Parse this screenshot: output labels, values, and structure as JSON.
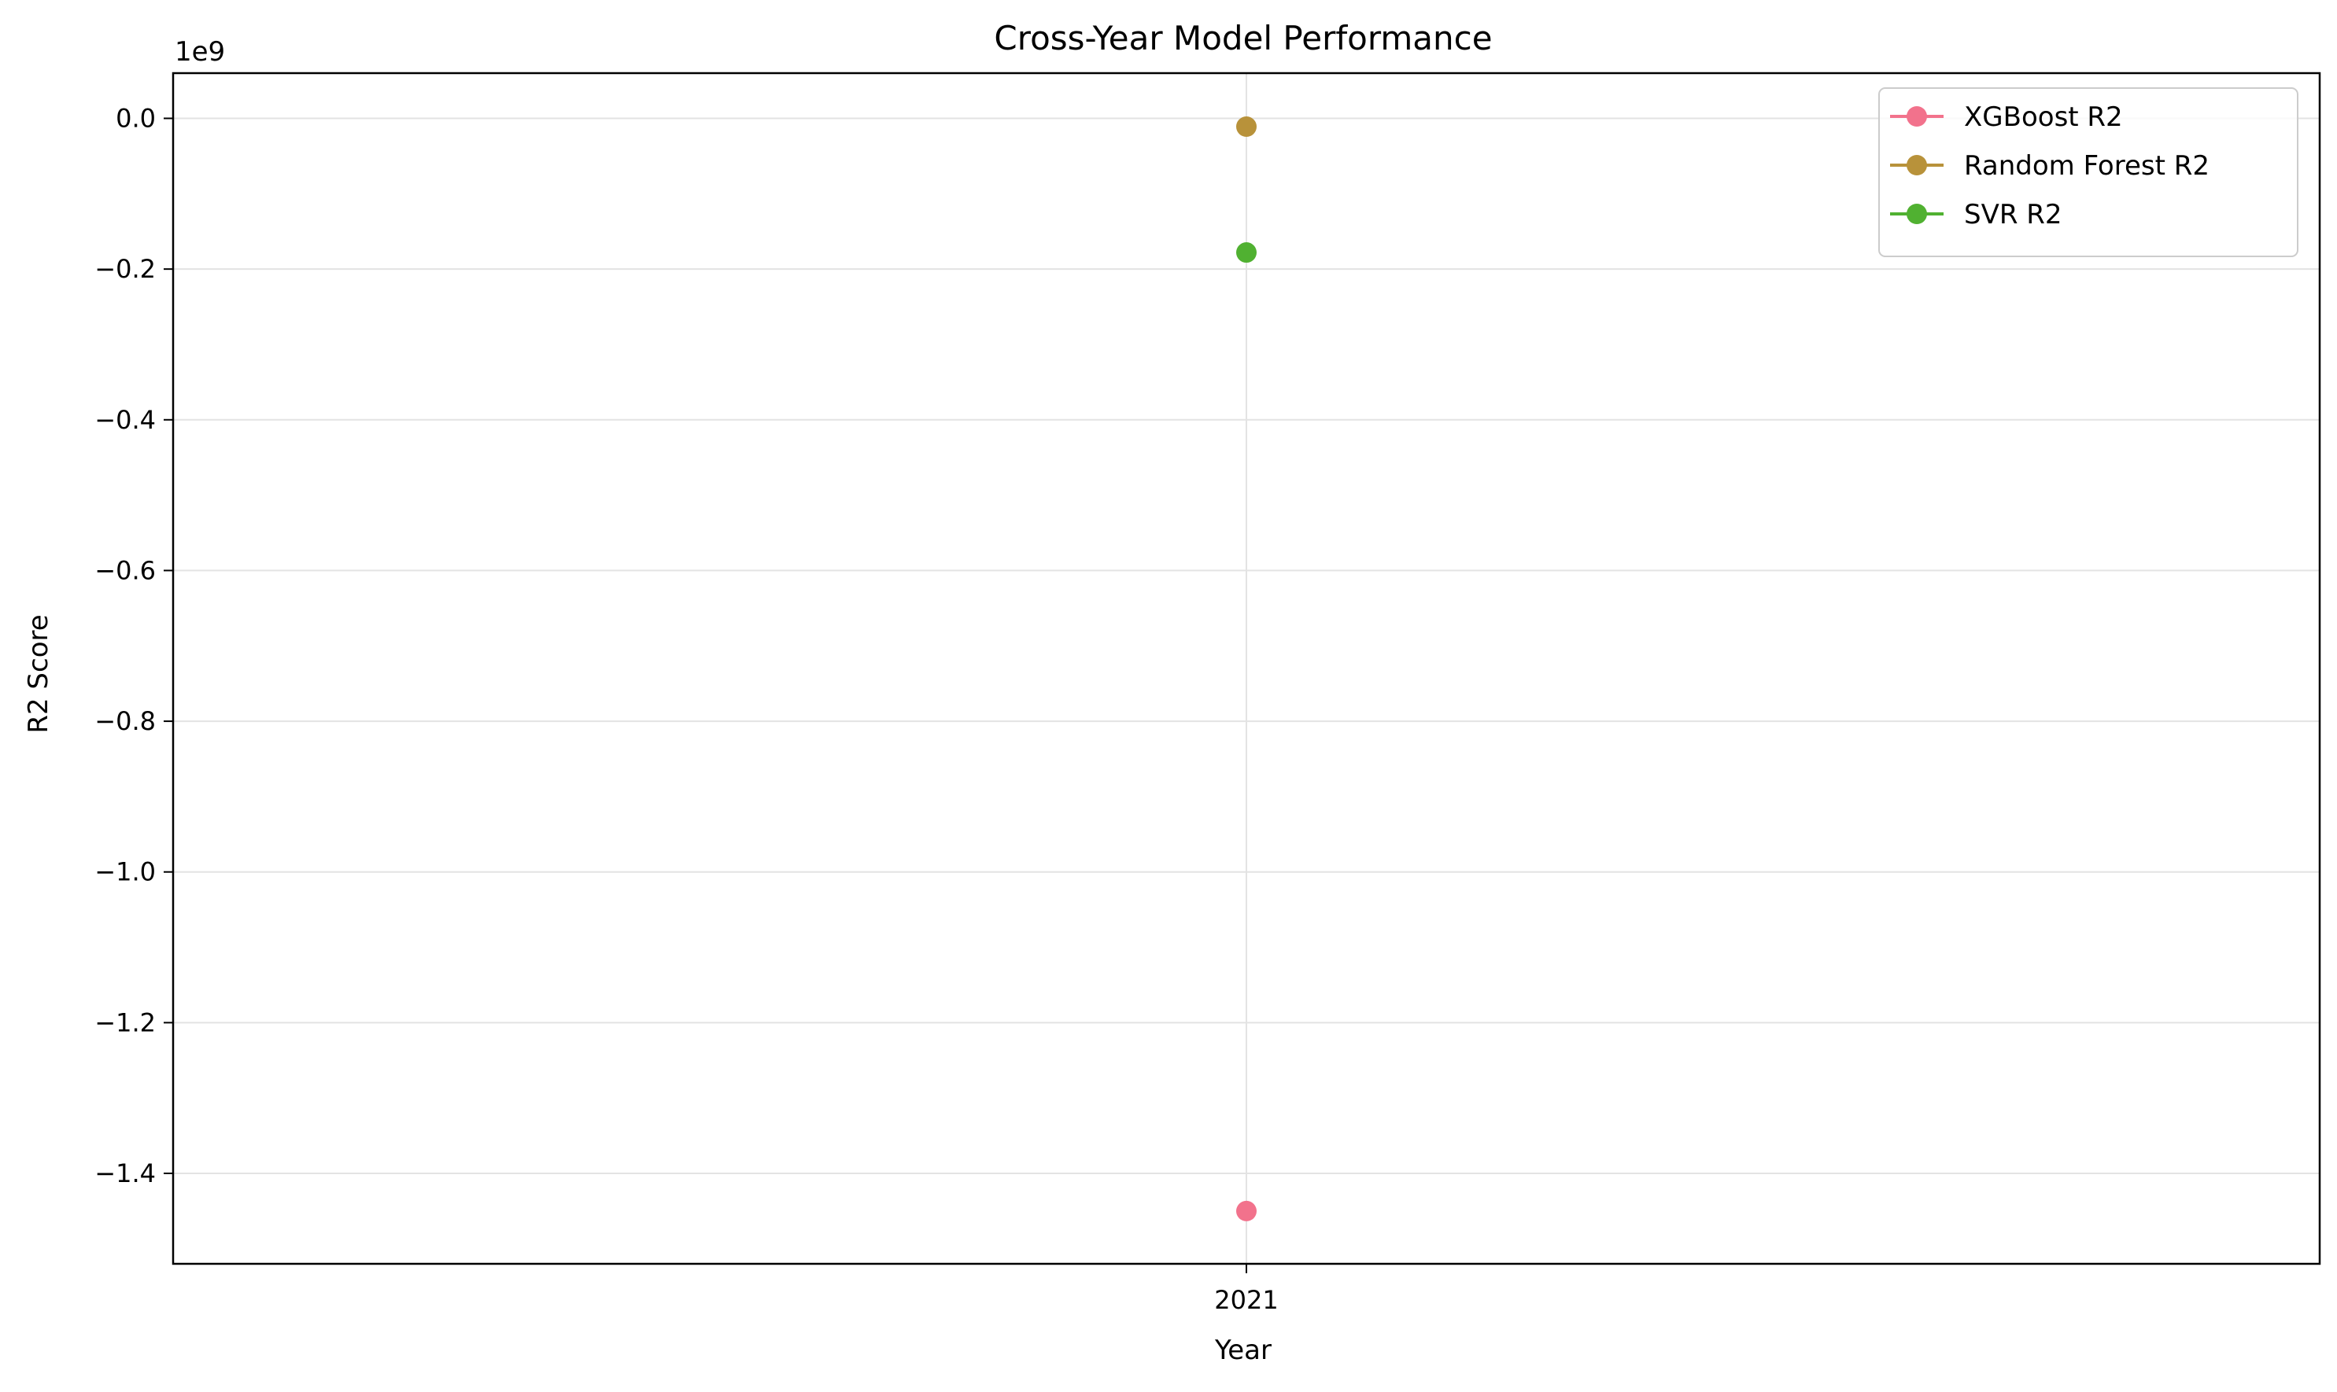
{
  "chart_data": {
    "type": "line",
    "title": "Cross-Year Model Performance",
    "xlabel": "Year",
    "ylabel": "R2 Score",
    "y_offset_label": "1e9",
    "categories": [
      "2021"
    ],
    "ylim": [
      -1.52,
      0.06
    ],
    "yticks": [
      0.0,
      -0.2,
      -0.4,
      -0.6,
      -0.8,
      -1.0,
      -1.2,
      -1.4
    ],
    "ytick_labels": [
      "0.0",
      "−0.2",
      "−0.4",
      "−0.6",
      "−0.8",
      "−1.0",
      "−1.2",
      "−1.4"
    ],
    "grid": true,
    "legend_position": "top-right",
    "series": [
      {
        "name": "XGBoost R2",
        "color": "#f2728c",
        "values": [
          -1.45
        ]
      },
      {
        "name": "Random Forest R2",
        "color": "#b8923a",
        "values": [
          -0.011
        ]
      },
      {
        "name": "SVR R2",
        "color": "#50b131",
        "values": [
          -0.178
        ]
      }
    ]
  }
}
